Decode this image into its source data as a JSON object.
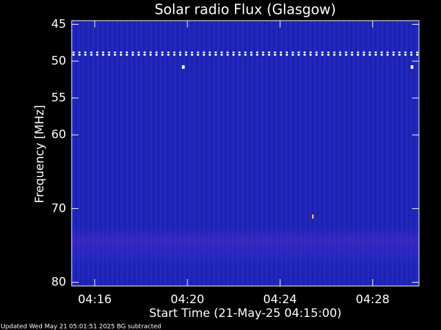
{
  "chart_data": {
    "type": "spectrogram",
    "title": "Solar radio Flux (Glasgow)",
    "x_label": "Start Time (21-May-25 04:15:00)",
    "y_label": "Frequency [MHz]",
    "footer": "Updated Wed May 21 05:01:51 2025   BG subtracted",
    "xlim": [
      15,
      30
    ],
    "xticks": [
      {
        "value": 16,
        "label": "04:16"
      },
      {
        "value": 20,
        "label": "04:20"
      },
      {
        "value": 24,
        "label": "04:24"
      },
      {
        "value": 28,
        "label": "04:28"
      }
    ],
    "ylim": [
      44.5,
      80.5
    ],
    "y_inverted": true,
    "yticks": [
      45,
      50,
      55,
      60,
      70,
      80
    ]
  }
}
